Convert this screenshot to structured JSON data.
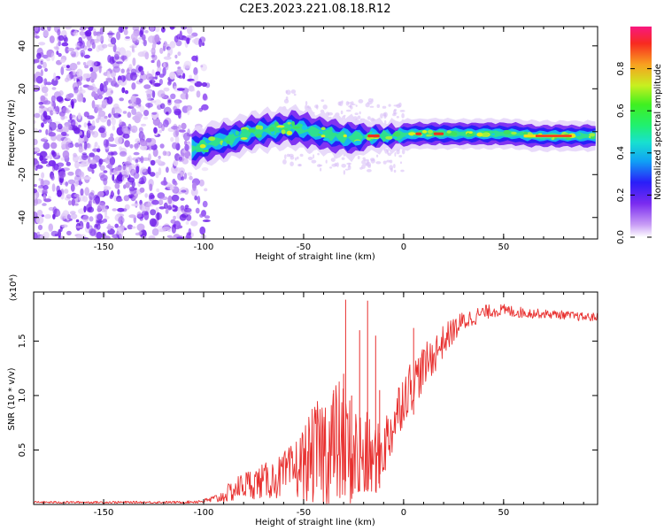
{
  "title": "C2E3.2023.221.08.18.R12",
  "colors": {
    "snr_line": "#e8302f",
    "spectro_scatter": "#7a2bf0",
    "spectro_core": [
      "#3a1cf5",
      "#1ab8f0",
      "#2fe08a",
      "#d8f020",
      "#f03020"
    ]
  },
  "chart_data": [
    {
      "type": "heatmap",
      "name": "spectrogram",
      "xlabel": "Height of straight line (km)",
      "ylabel": "Frequency (Hz)",
      "xlim": [
        -185,
        97
      ],
      "ylim": [
        -50,
        49
      ],
      "xticks": [
        -150,
        -100,
        -50,
        0,
        50
      ],
      "yticks": [
        -40,
        -20,
        0,
        20,
        40
      ],
      "xtick_labels": [
        "-150",
        "-100",
        "-50",
        "0",
        "50"
      ],
      "ytick_labels": [
        "-40",
        "-20",
        "0",
        "20",
        "40"
      ],
      "noise_region_x": [
        -185,
        -98
      ],
      "signal_track": {
        "x": [
          -105,
          -95,
          -85,
          -75,
          -65,
          -55,
          -45,
          -35,
          -25,
          -15,
          -5,
          5,
          15,
          25,
          35,
          45,
          55,
          65,
          75,
          85,
          95
        ],
        "frequency": [
          -8,
          -5,
          -3,
          0,
          1,
          2,
          0,
          -2,
          -3,
          -2,
          -2,
          -1,
          -1,
          -1,
          -1,
          -1,
          -1,
          -2,
          -2,
          -2,
          -2
        ]
      },
      "colorbar": {
        "label": "Normalized spectral amplitude",
        "range": [
          0.0,
          1.0
        ],
        "ticks": [
          0.0,
          0.2,
          0.4,
          0.6,
          0.8
        ],
        "tick_labels": [
          "0.0",
          "0.2",
          "0.4",
          "0.6",
          "0.8"
        ]
      }
    },
    {
      "type": "line",
      "name": "snr",
      "xlabel": "Height of straight line (km)",
      "ylabel": "SNR (10 * v/v)",
      "y_multiplier": "(x10⁴)",
      "xlim": [
        -185,
        97
      ],
      "ylim": [
        0,
        1.95
      ],
      "xticks": [
        -150,
        -100,
        -50,
        0,
        50
      ],
      "yticks": [
        0.5,
        1.0,
        1.5
      ],
      "xtick_labels": [
        "-150",
        "-100",
        "-50",
        "0",
        "50"
      ],
      "ytick_labels": [
        "0.5",
        "1.0",
        "1.5"
      ],
      "series": [
        {
          "name": "SNR",
          "x": [
            -185,
            -170,
            -150,
            -130,
            -110,
            -100,
            -92,
            -86,
            -80,
            -74,
            -68,
            -62,
            -56,
            -50,
            -45,
            -40,
            -36,
            -32,
            -28,
            -25,
            -22,
            -20,
            -18,
            -15,
            -12,
            -8,
            -4,
            0,
            4,
            8,
            12,
            16,
            20,
            25,
            30,
            35,
            40,
            45,
            50,
            60,
            70,
            80,
            90,
            97
          ],
          "base": [
            0.02,
            0.02,
            0.02,
            0.02,
            0.02,
            0.03,
            0.06,
            0.12,
            0.18,
            0.2,
            0.22,
            0.25,
            0.3,
            0.38,
            0.45,
            0.5,
            0.55,
            0.55,
            0.5,
            0.45,
            0.42,
            0.42,
            0.42,
            0.4,
            0.45,
            0.6,
            0.8,
            1.0,
            1.1,
            1.2,
            1.3,
            1.4,
            1.5,
            1.6,
            1.68,
            1.72,
            1.76,
            1.78,
            1.78,
            1.76,
            1.75,
            1.74,
            1.72,
            1.72
          ],
          "amp": [
            0.01,
            0.01,
            0.01,
            0.01,
            0.01,
            0.02,
            0.05,
            0.1,
            0.13,
            0.15,
            0.17,
            0.2,
            0.25,
            0.35,
            0.45,
            0.55,
            0.6,
            0.6,
            0.55,
            0.5,
            0.5,
            0.45,
            0.42,
            0.35,
            0.3,
            0.3,
            0.28,
            0.25,
            0.24,
            0.22,
            0.2,
            0.18,
            0.15,
            0.12,
            0.1,
            0.08,
            0.07,
            0.06,
            0.06,
            0.05,
            0.04,
            0.04,
            0.04,
            0.04
          ],
          "spikes": [
            {
              "x": -35,
              "y": 1.05
            },
            {
              "x": -30,
              "y": 1.2
            },
            {
              "x": -29,
              "y": 1.88
            },
            {
              "x": -26,
              "y": 1.0
            },
            {
              "x": -22,
              "y": 1.6
            },
            {
              "x": -18,
              "y": 1.87
            },
            {
              "x": -14,
              "y": 1.55
            },
            {
              "x": -12,
              "y": 1.05
            },
            {
              "x": 5,
              "y": 1.62
            }
          ]
        }
      ]
    }
  ]
}
